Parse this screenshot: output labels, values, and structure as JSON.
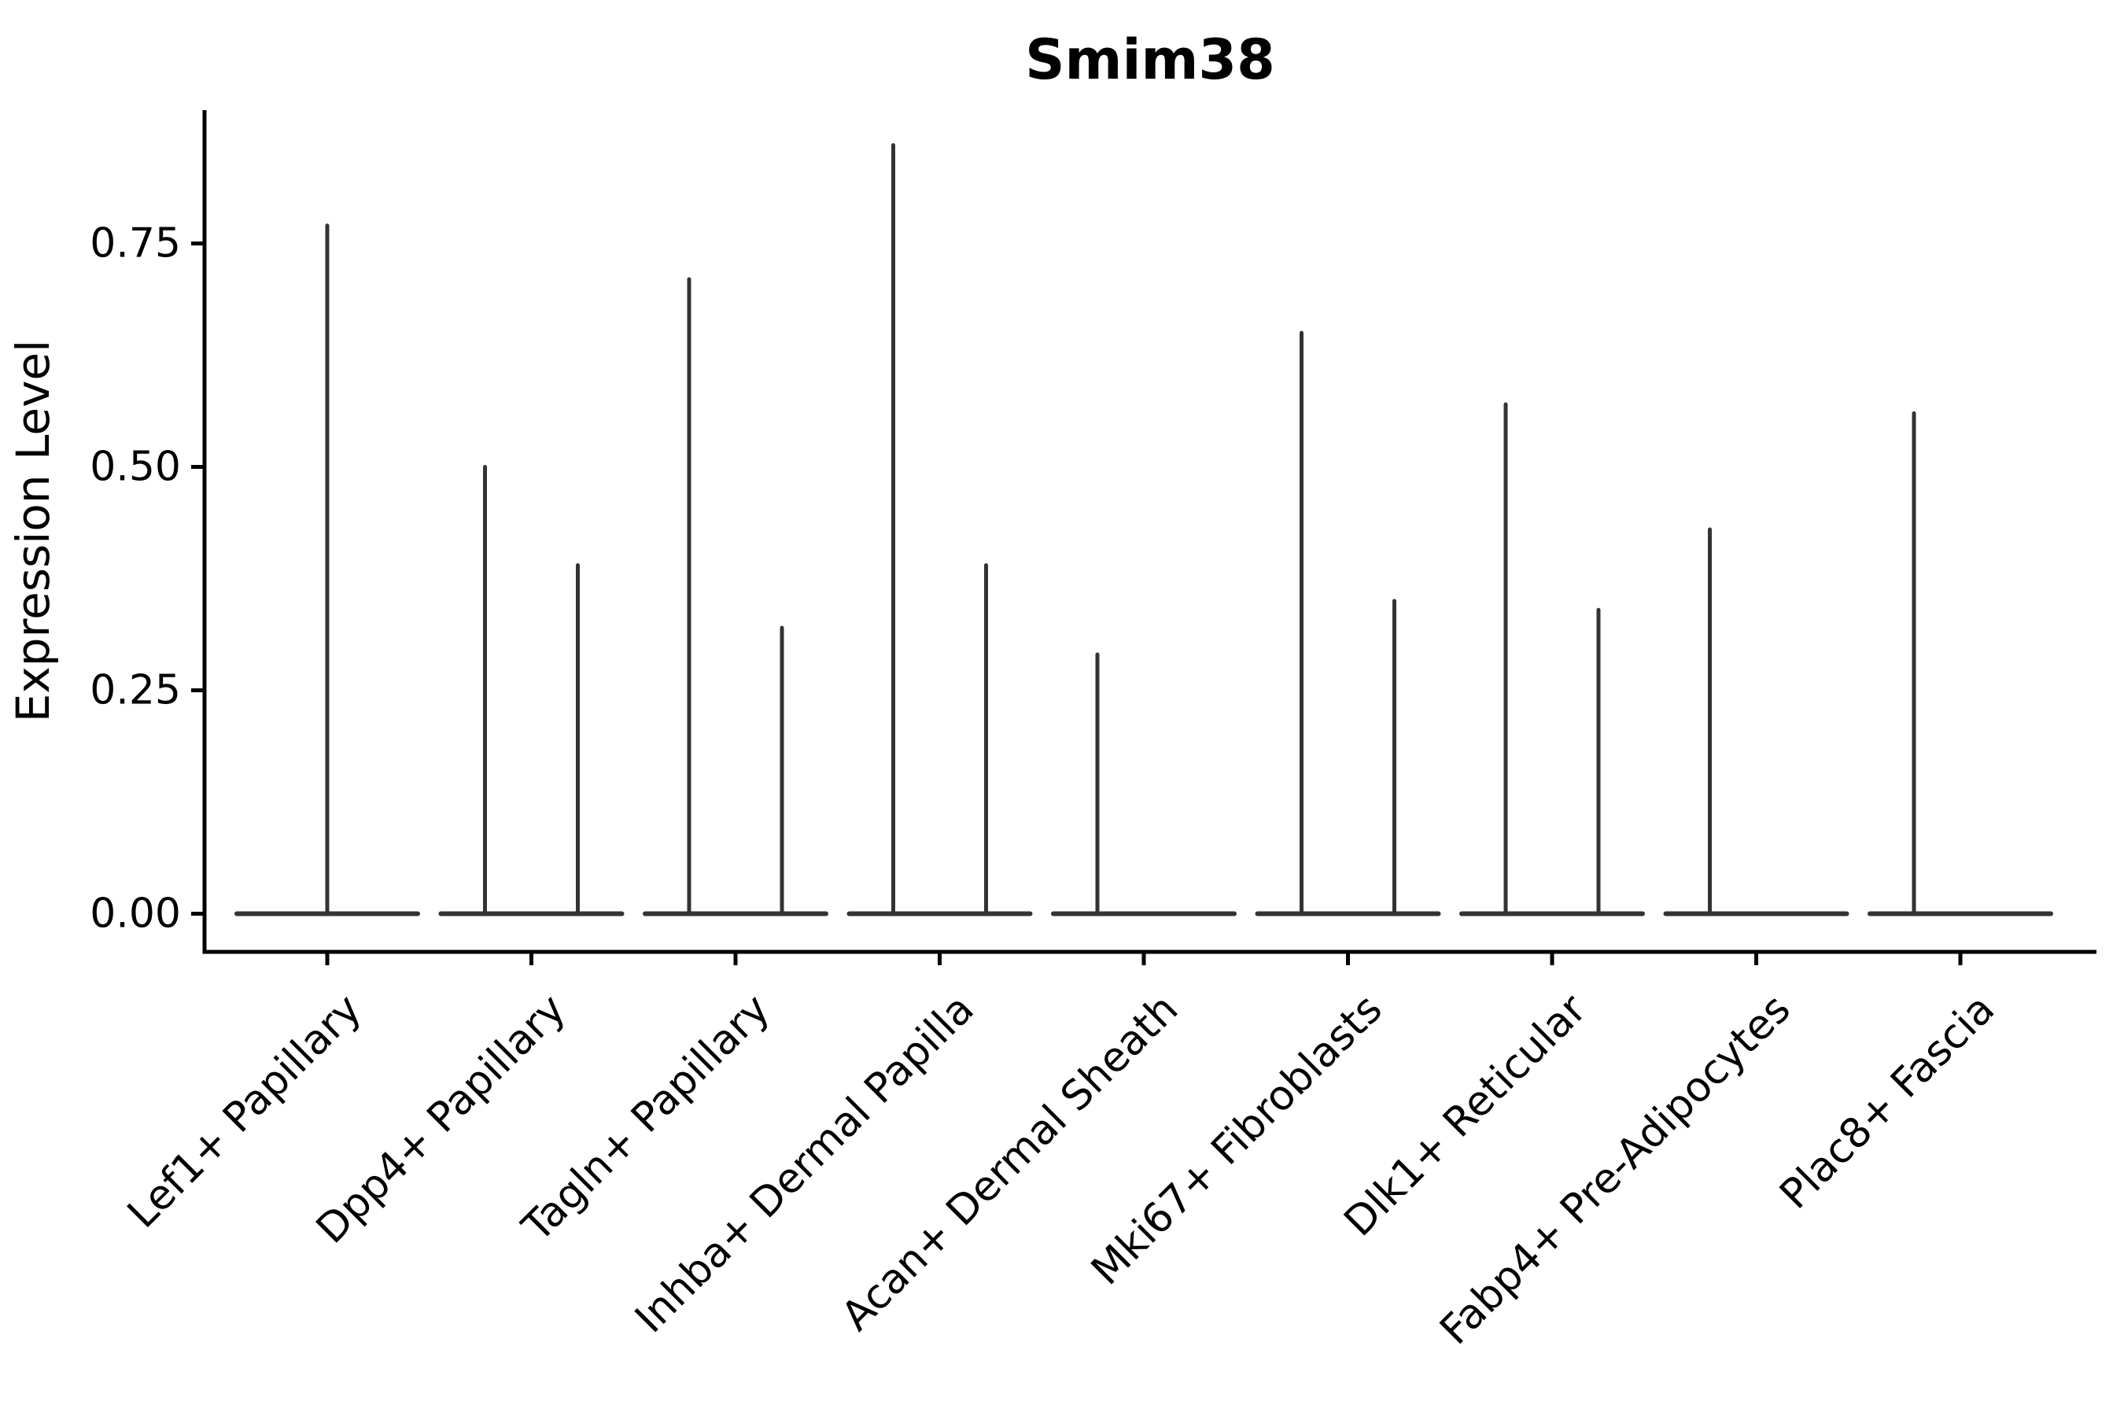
{
  "chart_data": {
    "type": "violin",
    "title": "Smim38",
    "ylabel": "Expression Level",
    "xlabel": "",
    "grid": false,
    "legend": null,
    "background": "#ffffff",
    "violin_color": "#333333",
    "axis_color": "#000000",
    "ylim": [
      -0.042,
      0.9
    ],
    "yticks": [
      0,
      0.25,
      0.5,
      0.75
    ],
    "ytick_labels": [
      "0.00",
      "0.25",
      "0.50",
      "0.75"
    ],
    "categories": [
      "Lef1+ Papillary",
      "Dpp4+ Papillary",
      "Tagln+ Papillary",
      "Inhba+ Dermal Papilla",
      "Acan+ Dermal Sheath",
      "Mki67+ Fibroblasts",
      "Dlk1+ Reticular",
      "Fabp4+ Pre-Adipocytes",
      "Plac8+ Fascia"
    ],
    "violins": [
      {
        "category": "Lef1+ Papillary",
        "spikes": [
          {
            "position": "center",
            "max": 0.77
          }
        ]
      },
      {
        "category": "Dpp4+ Papillary",
        "spikes": [
          {
            "position": "left",
            "max": 0.5
          },
          {
            "position": "right",
            "max": 0.39
          }
        ]
      },
      {
        "category": "Tagln+ Papillary",
        "spikes": [
          {
            "position": "left",
            "max": 0.71
          },
          {
            "position": "right",
            "max": 0.32
          }
        ]
      },
      {
        "category": "Inhba+ Dermal Papilla",
        "spikes": [
          {
            "position": "left",
            "max": 0.86
          },
          {
            "position": "right",
            "max": 0.39
          }
        ]
      },
      {
        "category": "Acan+ Dermal Sheath",
        "spikes": [
          {
            "position": "left",
            "max": 0.29
          },
          {
            "position": "right",
            "max": 0.0
          }
        ]
      },
      {
        "category": "Mki67+ Fibroblasts",
        "spikes": [
          {
            "position": "left",
            "max": 0.65
          },
          {
            "position": "right",
            "max": 0.35
          }
        ]
      },
      {
        "category": "Dlk1+ Reticular",
        "spikes": [
          {
            "position": "left",
            "max": 0.57
          },
          {
            "position": "right",
            "max": 0.34
          }
        ]
      },
      {
        "category": "Fabp4+ Pre-Adipocytes",
        "spikes": [
          {
            "position": "left",
            "max": 0.43
          },
          {
            "position": "right",
            "max": 0.0
          }
        ]
      },
      {
        "category": "Plac8+ Fascia",
        "spikes": [
          {
            "position": "left",
            "max": 0.56
          },
          {
            "position": "right",
            "max": 0.0
          }
        ]
      }
    ]
  }
}
